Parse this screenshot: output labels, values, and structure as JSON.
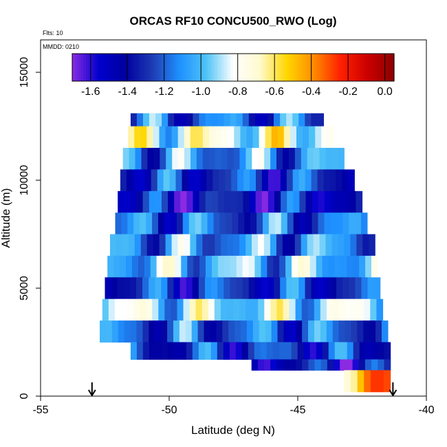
{
  "chart_data": {
    "type": "heatmap",
    "title": "ORCAS RF10 CONCU500_RWO (Log)",
    "annotations": {
      "flights": "Flts: 10",
      "date": "MMDD: 0210"
    },
    "xlabel": "Latitude (deg N)",
    "ylabel": "Altitude (m)",
    "xlim": [
      -55,
      -40
    ],
    "ylim": [
      0,
      16500
    ],
    "x_ticks": [
      -55,
      -50,
      -45,
      -40
    ],
    "x_tick_labels": [
      "-55",
      "-50",
      "-45",
      "-40"
    ],
    "y_ticks": [
      0,
      5000,
      10000,
      15000
    ],
    "y_tick_labels": [
      "0",
      "5000",
      "10000",
      "15000"
    ],
    "colorbar": {
      "range": [
        -1.7,
        0.05
      ],
      "ticks": [
        -1.6,
        -1.4,
        -1.2,
        -1.0,
        -0.8,
        -0.6,
        -0.4,
        -0.2,
        0.0
      ],
      "tick_labels": [
        "-1.6",
        "-1.4",
        "-1.2",
        "-1.0",
        "-0.8",
        "-0.6",
        "-0.4",
        "-0.2",
        "0.0"
      ],
      "colors": [
        "#8a2be2",
        "#0000cd",
        "#0000a0",
        "#1e3cb4",
        "#1e90ff",
        "#4fc3f7",
        "#ffffff",
        "#fffacd",
        "#ffd700",
        "#ff8c00",
        "#ff2000",
        "#cc0000",
        "#8b0000"
      ]
    },
    "arrows_lat": [
      -53,
      -41.3
    ],
    "altitude_bins_m": [
      12600,
      12000,
      11000,
      10000,
      9000,
      8000,
      7000,
      6000,
      5000,
      4000,
      3000,
      2000,
      1200,
      700
    ],
    "lat_extent_deg": [
      [
        -51.5,
        -44.0
      ],
      [
        -51.6,
        -43.6
      ],
      [
        -51.8,
        -43.2
      ],
      [
        -51.9,
        -42.8
      ],
      [
        -52.0,
        -42.5
      ],
      [
        -52.1,
        -42.3
      ],
      [
        -52.3,
        -42.0
      ],
      [
        -52.4,
        -41.9
      ],
      [
        -52.5,
        -41.8
      ],
      [
        -52.6,
        -41.7
      ],
      [
        -52.7,
        -41.5
      ],
      [
        -51.5,
        -41.4
      ],
      [
        -46.8,
        -41.4
      ],
      [
        -43.2,
        -41.4
      ]
    ],
    "log_values": [
      -1.2,
      -0.8,
      -1.1,
      -1.3,
      -1.4,
      -1.2,
      -1.1,
      -1.0,
      -1.3,
      -0.9,
      -1.2,
      -1.3,
      -1.4,
      -0.4
    ]
  }
}
